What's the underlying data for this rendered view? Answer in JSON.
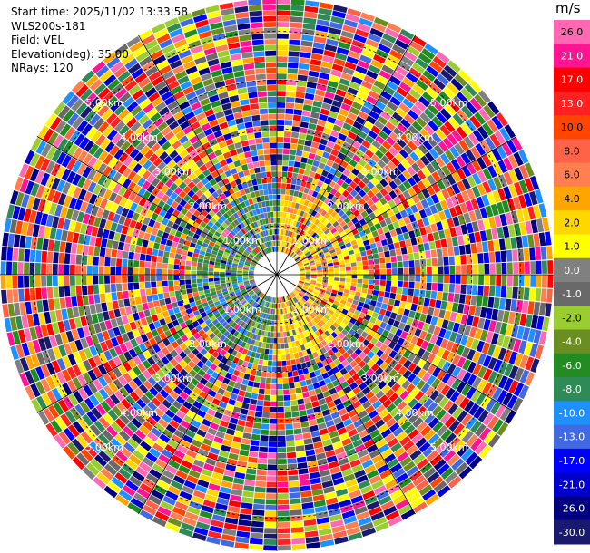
{
  "info": {
    "start_time": "Start time: 2025/11/02 13:33:58",
    "site": "WLS200s-181",
    "field": "Field: VEL",
    "elevation": "Elevation(deg): 35.00",
    "nrays": "NRays: 120"
  },
  "chart_data": {
    "type": "heatmap",
    "projection": "polar-ppi",
    "nrays": 120,
    "max_range_km": 10,
    "range_rings_km": [
      1,
      2,
      3,
      4,
      5
    ],
    "ring_labels": [
      "1.00km",
      "2.00km",
      "3.00km",
      "4.00km",
      "5.00km"
    ],
    "colorbar": {
      "unit": "m/s",
      "ticks": [
        "26.0",
        "21.0",
        "17.0",
        "13.0",
        "10.0",
        "8.0",
        "6.0",
        "4.0",
        "2.0",
        "1.0",
        "0.0",
        "-1.0",
        "-2.0",
        "-4.0",
        "-6.0",
        "-8.0",
        "-10.0",
        "-13.0",
        "-17.0",
        "-21.0",
        "-26.0",
        "-30.0"
      ],
      "colors": [
        "#ff69b4",
        "#ff1493",
        "#ff0000",
        "#ff2020",
        "#ff4500",
        "#ff6347",
        "#ff7f50",
        "#ffa500",
        "#ffd700",
        "#ffff00",
        "#808080",
        "#696969",
        "#9acd32",
        "#6b8e23",
        "#228b22",
        "#2e8b57",
        "#1e90ff",
        "#4169e1",
        "#0000ff",
        "#0000cd",
        "#000080",
        "#191970"
      ]
    }
  }
}
